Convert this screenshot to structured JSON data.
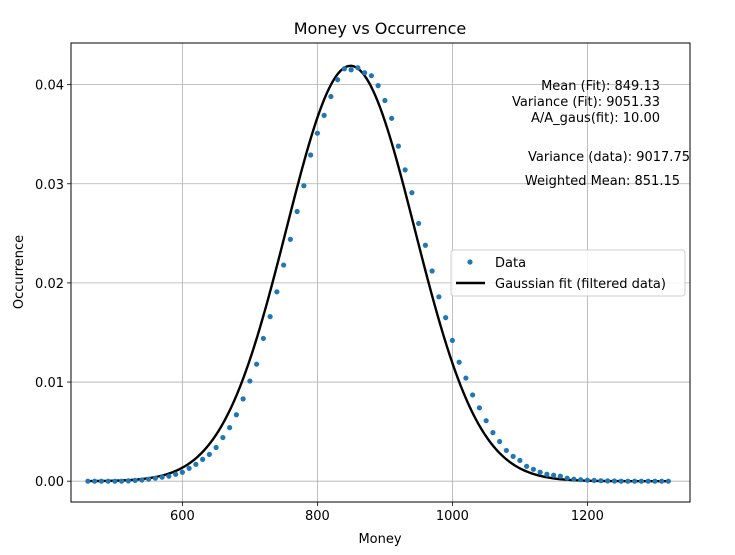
{
  "chart_data": {
    "type": "scatter",
    "title": "Money vs Occurrence",
    "xlabel": "Money",
    "ylabel": "Occurrence",
    "xlim": [
      435,
      1352
    ],
    "ylim": [
      -0.0021,
      0.0442
    ],
    "xticks": [
      600,
      800,
      1000,
      1200
    ],
    "xtick_labels": [
      "600",
      "800",
      "1000",
      "1200"
    ],
    "yticks": [
      0.0,
      0.01,
      0.02,
      0.03,
      0.04
    ],
    "ytick_labels": [
      "0.00",
      "0.01",
      "0.02",
      "0.03",
      "0.04"
    ],
    "grid": true,
    "legend_position": "right",
    "series": [
      {
        "name": "Data",
        "kind": "scatter",
        "color": "#1f77b4",
        "x": [
          460,
          470,
          480,
          490,
          500,
          510,
          520,
          530,
          540,
          550,
          560,
          570,
          580,
          590,
          600,
          610,
          620,
          630,
          640,
          650,
          660,
          670,
          680,
          690,
          700,
          710,
          720,
          730,
          740,
          750,
          760,
          770,
          780,
          790,
          800,
          810,
          820,
          830,
          840,
          850,
          860,
          870,
          880,
          890,
          900,
          910,
          920,
          930,
          940,
          950,
          960,
          970,
          980,
          990,
          1000,
          1010,
          1020,
          1030,
          1040,
          1050,
          1060,
          1070,
          1080,
          1090,
          1100,
          1110,
          1120,
          1130,
          1140,
          1150,
          1160,
          1170,
          1180,
          1190,
          1200,
          1210,
          1220,
          1230,
          1240,
          1250,
          1260,
          1270,
          1280,
          1290,
          1300,
          1310,
          1320
        ],
        "y": [
          0.0,
          0.0,
          0.0,
          0.0,
          0.0,
          0.0,
          3e-05,
          8e-05,
          0.00012,
          0.0002,
          0.0003,
          0.0004,
          0.0005,
          0.0007,
          0.0009,
          0.0013,
          0.0017,
          0.0022,
          0.0027,
          0.0034,
          0.0044,
          0.0054,
          0.0067,
          0.0083,
          0.0101,
          0.0118,
          0.0144,
          0.0166,
          0.0191,
          0.0218,
          0.0244,
          0.0272,
          0.0298,
          0.0329,
          0.0351,
          0.0369,
          0.0388,
          0.0405,
          0.0416,
          0.0415,
          0.0417,
          0.0412,
          0.0409,
          0.0399,
          0.0384,
          0.0366,
          0.0338,
          0.0314,
          0.0291,
          0.026,
          0.0238,
          0.0212,
          0.0186,
          0.0165,
          0.0142,
          0.012,
          0.0104,
          0.0087,
          0.0074,
          0.0061,
          0.0049,
          0.004,
          0.0031,
          0.0025,
          0.0021,
          0.0015,
          0.0012,
          0.0009,
          0.0007,
          0.0006,
          0.0005,
          0.0003,
          0.0002,
          0.00015,
          0.0001,
          8e-05,
          5e-05,
          3e-05,
          2e-05,
          0.0,
          0.0,
          0.0,
          0.0,
          0.0,
          0.0,
          0.0,
          0.0
        ]
      },
      {
        "name": "Gaussian fit (filtered data)",
        "kind": "line",
        "color": "#000000",
        "model": "gaussian",
        "mean": 849.13,
        "variance": 9051.33,
        "peak": 0.0419,
        "x_range": [
          460,
          1320
        ]
      }
    ],
    "annotations": [
      "Mean (Fit): 849.13",
      "Variance (Fit): 9051.33",
      "A/A_gaus(fit): 10.00",
      "Variance (data): 9017.75",
      "Weighted Mean: 851.15"
    ]
  }
}
